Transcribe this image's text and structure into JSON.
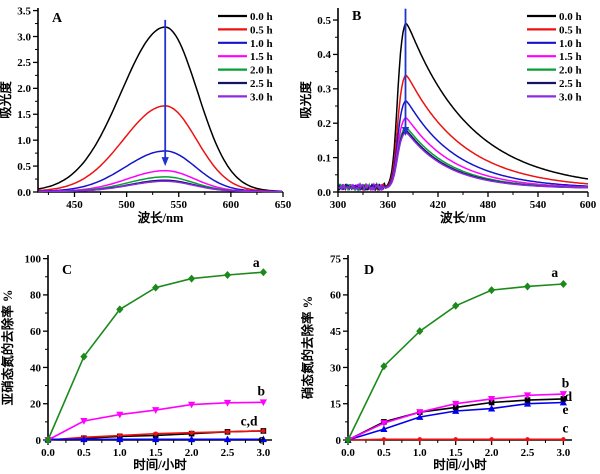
{
  "figure": {
    "background": "#ffffff",
    "arrow_color": "#2233cc"
  },
  "chart_data": [
    {
      "id": "A",
      "type": "line",
      "panel_label": "A",
      "xlabel": "波长/nm",
      "ylabel": "吸光度",
      "xlim": [
        415,
        650
      ],
      "ylim": [
        0,
        3.55
      ],
      "xtick_vals": [
        450,
        500,
        550,
        600,
        650
      ],
      "xtick_labels": [
        "450",
        "500",
        "550",
        "600",
        "650"
      ],
      "ytick_vals": [
        0,
        0.5,
        1.0,
        1.5,
        2.0,
        2.5,
        3.0,
        3.5
      ],
      "ytick_labels": [
        "0.0",
        "0.5",
        "1.0",
        "1.5",
        "2.0",
        "2.5",
        "3.0",
        "3.5"
      ],
      "x_minor_step": 25,
      "y_minor_step": 0.25,
      "grid": false,
      "legend_position": "top-right",
      "curve_model": "gaussian",
      "peak_wavelength": 537,
      "baseline": 0.012,
      "series": [
        {
          "name": "0.0 h",
          "color": "#000000",
          "peak": 3.17,
          "sigma_left": 42,
          "sigma_right": 31
        },
        {
          "name": "0.5 h",
          "color": "#ee1111",
          "peak": 1.65,
          "sigma_left": 40,
          "sigma_right": 30
        },
        {
          "name": "1.0 h",
          "color": "#1414cc",
          "peak": 0.78,
          "sigma_left": 38,
          "sigma_right": 29
        },
        {
          "name": "1.5 h",
          "color": "#ff00ff",
          "peak": 0.4,
          "sigma_left": 36,
          "sigma_right": 28
        },
        {
          "name": "2.0 h",
          "color": "#089e38",
          "peak": 0.28,
          "sigma_left": 35,
          "sigma_right": 27
        },
        {
          "name": "2.5 h",
          "color": "#141466",
          "peak": 0.215,
          "sigma_left": 34,
          "sigma_right": 27
        },
        {
          "name": "3.0 h",
          "color": "#8b2be2",
          "peak": 0.195,
          "sigma_left": 34,
          "sigma_right": 27
        }
      ],
      "arrow": {
        "x": 537,
        "from": 3.32,
        "to": 0.5
      }
    },
    {
      "id": "B",
      "type": "line",
      "panel_label": "B",
      "xlabel": "波长/nm",
      "ylabel": "吸光度",
      "xlim": [
        300,
        600
      ],
      "ylim": [
        0,
        0.535
      ],
      "xtick_vals": [
        300,
        360,
        420,
        480,
        540,
        600
      ],
      "xtick_labels": [
        "300",
        "360",
        "420",
        "480",
        "540",
        "600"
      ],
      "ytick_vals": [
        0,
        0.1,
        0.2,
        0.3,
        0.4,
        0.5
      ],
      "ytick_labels": [
        "0.0",
        "0.1",
        "0.2",
        "0.3",
        "0.4",
        "0.5"
      ],
      "x_minor_step": 30,
      "y_minor_step": 0.05,
      "grid": false,
      "legend_position": "top-right",
      "curve_model": "emission",
      "peak_wavelength": 381,
      "baseline": 0.01,
      "rise_center": 371,
      "rise_width": 3,
      "noise_until": 357,
      "series": [
        {
          "name": "0.0 h",
          "color": "#000000",
          "peak": 0.508,
          "tau": 76
        },
        {
          "name": "0.5 h",
          "color": "#ee1111",
          "peak": 0.352,
          "tau": 68
        },
        {
          "name": "1.0 h",
          "color": "#1414cc",
          "peak": 0.275,
          "tau": 60
        },
        {
          "name": "1.5 h",
          "color": "#ff00ff",
          "peak": 0.224,
          "tau": 56
        },
        {
          "name": "2.0 h",
          "color": "#089e38",
          "peak": 0.195,
          "tau": 53
        },
        {
          "name": "2.5 h",
          "color": "#141466",
          "peak": 0.186,
          "tau": 51
        },
        {
          "name": "3.0 h",
          "color": "#8b2be2",
          "peak": 0.18,
          "tau": 50
        }
      ],
      "arrow": {
        "x": 381,
        "from": 0.533,
        "to": 0.163
      }
    },
    {
      "id": "C",
      "type": "line",
      "panel_label": "C",
      "xlabel": "时间/小时",
      "ylabel": "亚硝态氮的去除率 %",
      "xlim": [
        0,
        3.12
      ],
      "ylim": [
        0,
        102
      ],
      "xtick_vals": [
        0,
        0.5,
        1.0,
        1.5,
        2.0,
        2.5,
        3.0
      ],
      "xtick_labels": [
        "0.0",
        "0.5",
        "1.0",
        "1.5",
        "2.0",
        "2.5",
        "3.0"
      ],
      "ytick_vals": [
        0,
        20,
        40,
        60,
        80,
        100
      ],
      "ytick_labels": [
        "0",
        "20",
        "40",
        "60",
        "80",
        "100"
      ],
      "x_minor_step": 0.25,
      "y_minor_step": 10,
      "grid": false,
      "x": [
        0,
        0.5,
        1.0,
        1.5,
        2.0,
        2.5,
        3.0
      ],
      "series": [
        {
          "name": "d",
          "color": "#000000",
          "marker": "square",
          "values": [
            0,
            1,
            2,
            2.5,
            3.5,
            4.5,
            5
          ]
        },
        {
          "name": "c",
          "color": "#ee1111",
          "marker": "circle",
          "values": [
            0,
            1.5,
            2.5,
            3.5,
            4,
            4.5,
            5
          ]
        },
        {
          "name": "e",
          "color": "#0000ee",
          "marker": "triangle-up",
          "values": [
            0.4,
            0.4,
            0.4,
            0.4,
            0.4,
            0.4,
            0.4
          ]
        },
        {
          "name": "b",
          "color": "#ff00ff",
          "marker": "triangle-down",
          "values": [
            0,
            10.5,
            14,
            16.5,
            19.5,
            20.5,
            20.8
          ]
        },
        {
          "name": "a",
          "color": "#1b8a1b",
          "marker": "diamond",
          "values": [
            0,
            46,
            72,
            84,
            89,
            91,
            92.5
          ]
        }
      ],
      "annotations": [
        {
          "text": "a",
          "x": 2.9,
          "y": 95.5
        },
        {
          "text": "b",
          "x": 2.97,
          "y": 24.5
        },
        {
          "text": "c,d",
          "x": 2.8,
          "y": 8
        },
        {
          "text": "e",
          "x": 2.97,
          "y": -2
        }
      ]
    },
    {
      "id": "D",
      "type": "line",
      "panel_label": "D",
      "xlabel": "时间/小时",
      "ylabel": "硝态氮的去除率 %",
      "xlim": [
        0,
        3.12
      ],
      "ylim": [
        0,
        76.5
      ],
      "xtick_vals": [
        0,
        0.5,
        1.0,
        1.5,
        2.0,
        2.5,
        3.0
      ],
      "xtick_labels": [
        "0.0",
        "0.5",
        "1.0",
        "1.5",
        "2.0",
        "2.5",
        "3.0"
      ],
      "ytick_vals": [
        0,
        15,
        30,
        45,
        60,
        75
      ],
      "ytick_labels": [
        "0",
        "15",
        "30",
        "45",
        "60",
        "75"
      ],
      "x_minor_step": 0.25,
      "y_minor_step": 7.5,
      "grid": false,
      "x": [
        0,
        0.5,
        1.0,
        1.5,
        2.0,
        2.5,
        3.0
      ],
      "series": [
        {
          "name": "c",
          "color": "#ee1111",
          "marker": "circle",
          "values": [
            0,
            0.3,
            0.3,
            0.3,
            0.3,
            0.3,
            0.3
          ]
        },
        {
          "name": "e",
          "color": "#0000ee",
          "marker": "triangle-up",
          "values": [
            0,
            4.5,
            9.5,
            12,
            13,
            15,
            15.5
          ]
        },
        {
          "name": "d",
          "color": "#000000",
          "marker": "square",
          "values": [
            0,
            7.5,
            11.5,
            13.5,
            15.5,
            16.5,
            17
          ]
        },
        {
          "name": "b",
          "color": "#ff00ff",
          "marker": "triangle-down",
          "values": [
            0,
            7,
            11.5,
            15,
            17,
            18.5,
            19
          ]
        },
        {
          "name": "a",
          "color": "#1b8a1b",
          "marker": "diamond",
          "values": [
            0,
            30.5,
            45,
            55.5,
            62,
            63.5,
            64.5
          ]
        }
      ],
      "annotations": [
        {
          "text": "a",
          "x": 2.88,
          "y": 67.5
        },
        {
          "text": "b",
          "x": 3.03,
          "y": 21.8
        },
        {
          "text": "d",
          "x": 3.07,
          "y": 16.2
        },
        {
          "text": "e",
          "x": 3.03,
          "y": 10.8
        },
        {
          "text": "c",
          "x": 3.03,
          "y": 3.0
        }
      ]
    }
  ]
}
